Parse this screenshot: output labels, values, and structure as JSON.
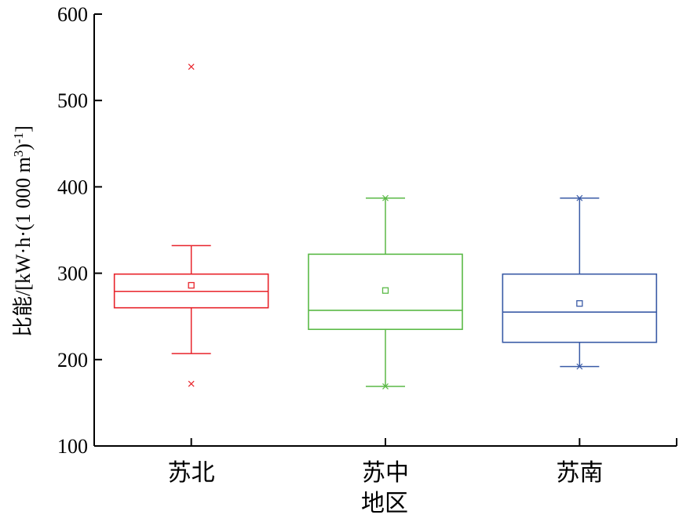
{
  "chart_data": {
    "type": "box",
    "title": "",
    "xlabel": "地区",
    "ylabel_main": "比能/[kW·h·(1 000 m",
    "ylabel_sup1": "3",
    "ylabel_mid": ")",
    "ylabel_sup2": "-1",
    "ylabel_end": "]",
    "ylim": [
      100,
      600
    ],
    "yticks": [
      "100",
      "200",
      "300",
      "400",
      "500",
      "600"
    ],
    "yticks_values": [
      100,
      200,
      300,
      400,
      500,
      600
    ],
    "grid": false,
    "categories": [
      "苏北",
      "苏中",
      "苏南"
    ],
    "series": [
      {
        "category": "苏北",
        "color": "#e8232a",
        "whisker_low": 207,
        "q1": 260,
        "median": 279,
        "q3": 299,
        "whisker_high": 332,
        "mean": 286,
        "min": 172,
        "max": 539
      },
      {
        "category": "苏中",
        "color": "#5ab946",
        "whisker_low": 169,
        "q1": 235,
        "median": 257,
        "q3": 322,
        "whisker_high": 387,
        "mean": 280,
        "min": 169,
        "max": 387
      },
      {
        "category": "苏南",
        "color": "#3a5ba6",
        "whisker_low": 192,
        "q1": 220,
        "median": 255,
        "q3": 299,
        "whisker_high": 387,
        "mean": 265,
        "min": 192,
        "max": 387
      }
    ]
  }
}
